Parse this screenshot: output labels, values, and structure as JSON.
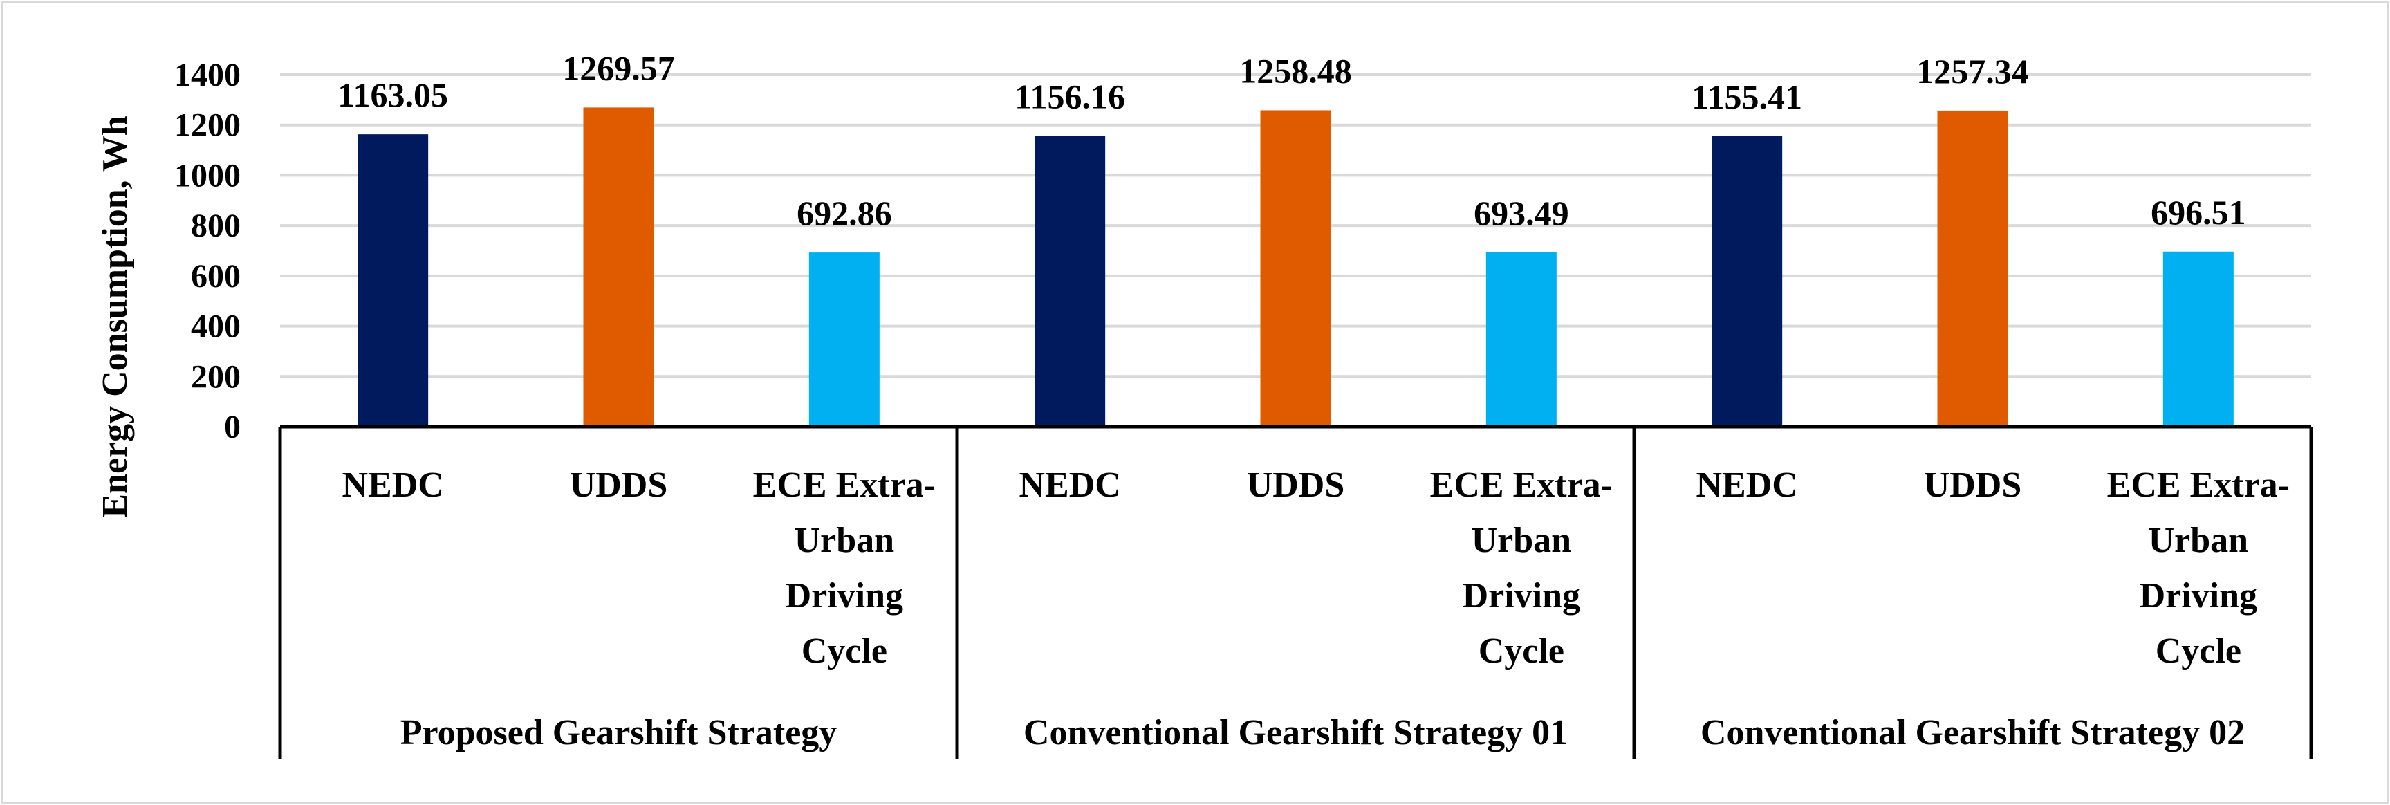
{
  "chart_data": {
    "type": "bar",
    "title": "",
    "ylabel": "Energy Consumption, Wh",
    "xlabel": "",
    "ylim": [
      0,
      1400
    ],
    "yticks": [
      0,
      200,
      400,
      600,
      800,
      1000,
      1200,
      1400
    ],
    "grid": true,
    "groups": [
      {
        "name": "Proposed Gearshift Strategy",
        "categories": [
          "NEDC",
          "UDDS",
          "ECE Extra-Urban Driving Cycle"
        ],
        "values": [
          1163.05,
          1269.57,
          692.86
        ],
        "value_labels": [
          "1163.05",
          "1269.57",
          "692.86"
        ]
      },
      {
        "name": "Conventional Gearshift Strategy 01",
        "categories": [
          "NEDC",
          "UDDS",
          "ECE Extra-Urban Driving Cycle"
        ],
        "values": [
          1156.16,
          1258.48,
          693.49
        ],
        "value_labels": [
          "1156.16",
          "1258.48",
          "693.49"
        ]
      },
      {
        "name": "Conventional Gearshift Strategy 02",
        "categories": [
          "NEDC",
          "UDDS",
          "ECE Extra-Urban Driving Cycle"
        ],
        "values": [
          1155.41,
          1257.34,
          696.51
        ],
        "value_labels": [
          "1155.41",
          "1257.34",
          "696.51"
        ]
      }
    ],
    "category_lines": {
      "NEDC": [
        "NEDC"
      ],
      "UDDS": [
        "UDDS"
      ],
      "ECE Extra-Urban Driving Cycle": [
        "ECE Extra-",
        "Urban",
        "Driving",
        "Cycle"
      ]
    },
    "colors": {
      "NEDC": "#001a5e",
      "UDDS": "#e05a00",
      "ECE Extra-Urban Driving Cycle": "#00b0f0",
      "grid": "#d9d9d9",
      "axis": "#000000",
      "frame": "#d9d9d9"
    }
  }
}
